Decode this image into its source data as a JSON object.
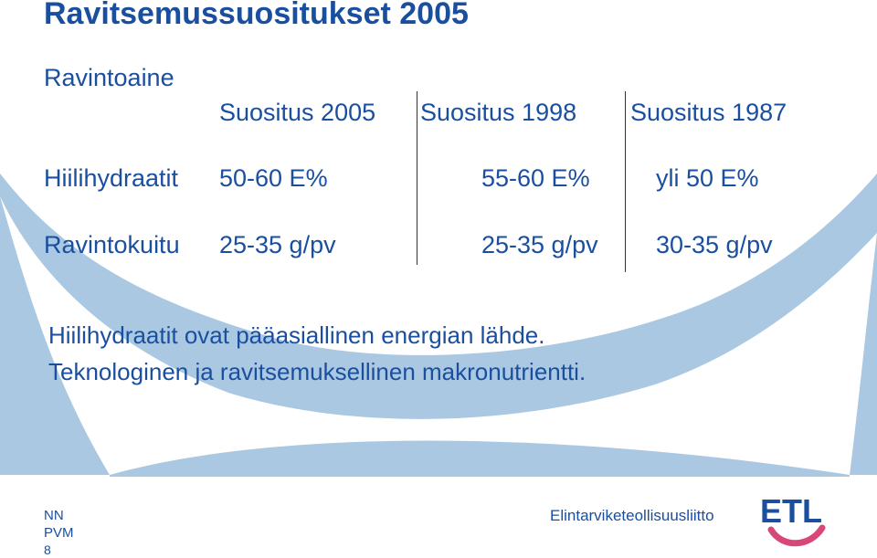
{
  "title": "Ravitsemussuositukset 2005",
  "table": {
    "header_row_label": "Ravintoaine",
    "columns": [
      "Suositus 2005",
      "Suositus 1998",
      "Suositus 1987"
    ],
    "rows": [
      {
        "label": "Hiilihydraatit",
        "values": [
          "50-60 E%",
          "55-60 E%",
          "yli 50 E%"
        ]
      },
      {
        "label": "Ravintokuitu",
        "values": [
          "25-35 g/pv",
          "25-35 g/pv",
          "30-35 g/pv"
        ]
      }
    ]
  },
  "notes": [
    "Hiilihydraatit ovat pääasiallinen energian lähde.",
    "Teknologinen ja ravitsemuksellinen makronutrientti."
  ],
  "footer": {
    "author": "NN",
    "date": "PVM",
    "page_number": "8",
    "organization": "Elintarviketeollisuusliitto",
    "logo_text": "ETL"
  },
  "colors": {
    "text": "#1a4fa0",
    "swoosh": "#aac8e2",
    "logo_smile": "#d8477a"
  }
}
